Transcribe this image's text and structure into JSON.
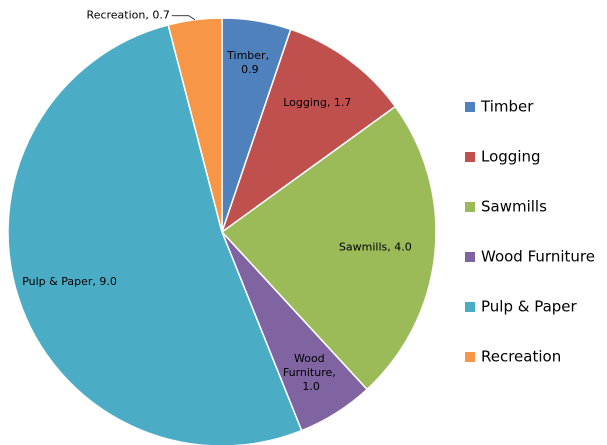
{
  "chart_data": {
    "type": "pie",
    "categories": [
      "Timber",
      "Logging",
      "Sawmills",
      "Wood Furniture",
      "Pulp & Paper",
      "Recreation"
    ],
    "values": [
      0.9,
      1.7,
      4.0,
      1.0,
      9.0,
      0.7
    ],
    "value_labels": [
      "Timber, 0.9",
      "Logging, 1.7",
      "Sawmills, 4.0",
      "Wood Furniture, 1.0",
      "Pulp & Paper, 9.0",
      "Recreation, 0.7"
    ],
    "colors": [
      "#4f81bd",
      "#c0504d",
      "#9bbb59",
      "#8064a2",
      "#4bacc6",
      "#f79646"
    ],
    "legend": "right"
  }
}
